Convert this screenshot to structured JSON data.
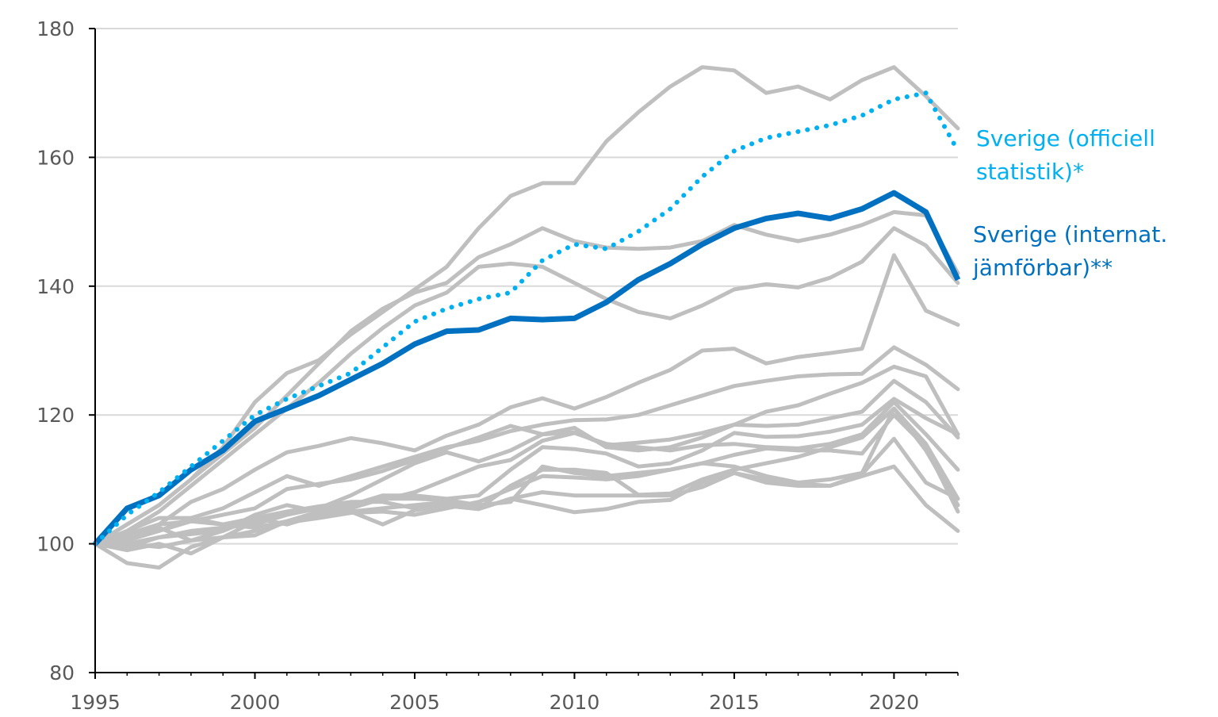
{
  "chart_data": {
    "type": "line",
    "title": "",
    "xlabel": "",
    "ylabel": "",
    "xlim": [
      1995,
      2022
    ],
    "ylim": [
      80,
      180
    ],
    "x_ticks": [
      "1995",
      "2000",
      "2005",
      "2010",
      "2015",
      "2020"
    ],
    "y_ticks": [
      "80",
      "100",
      "120",
      "140",
      "160",
      "180"
    ],
    "grid": "horizontal",
    "colors": {
      "highlight": "#0070C0",
      "official": "#00B0F0",
      "others": "#BFBFBF",
      "grid": "#D9D9D9",
      "axis": "#000000"
    },
    "x": [
      1995,
      1996,
      1997,
      1998,
      1999,
      2000,
      2001,
      2002,
      2003,
      2004,
      2005,
      2006,
      2007,
      2008,
      2009,
      2010,
      2011,
      2012,
      2013,
      2014,
      2015,
      2016,
      2017,
      2018,
      2019,
      2020,
      2021,
      2022
    ],
    "background_series": [
      [
        100,
        103,
        106,
        110,
        115,
        122,
        126.5,
        128.5,
        132.5,
        136,
        139.5,
        143,
        149,
        154,
        156,
        156,
        162.5,
        167,
        171,
        174,
        173.5,
        170,
        171,
        169,
        172,
        174,
        169.5,
        164.5
      ],
      [
        100,
        103,
        106,
        110,
        114,
        118,
        123,
        128,
        133,
        136.5,
        139,
        140.5,
        144.5,
        146.5,
        149,
        147,
        146,
        145.8,
        146,
        147,
        149.5,
        148,
        147,
        148,
        149.5,
        151.5,
        151,
        142
      ],
      [
        100,
        102,
        105,
        109,
        113,
        117,
        121,
        125,
        129.5,
        133.5,
        137,
        139,
        143,
        143.5,
        143,
        140.5,
        138,
        136,
        135,
        137,
        139.5,
        140.3,
        139.8,
        141.3,
        143.8,
        149,
        146.3,
        140.5
      ],
      [
        100,
        101.5,
        103,
        106.5,
        108.5,
        111.5,
        114.2,
        115.2,
        116.4,
        115.6,
        114.5,
        116.8,
        118.5,
        121.2,
        122.6,
        121,
        122.8,
        125,
        127,
        130,
        130.3,
        128,
        129,
        129.6,
        130.3,
        144.8,
        136.2,
        134
      ],
      [
        100,
        101,
        102,
        104,
        105.5,
        108,
        110.5,
        109,
        110.5,
        112,
        113.5,
        115,
        116,
        117.5,
        118.5,
        119.2,
        119.3,
        120,
        121.5,
        123,
        124.5,
        125.3,
        126,
        126.3,
        126.4,
        130.5,
        127.8,
        124
      ],
      [
        100,
        100.5,
        102,
        103.5,
        104.5,
        105.5,
        108.5,
        109.3,
        110,
        111.3,
        113,
        114.8,
        116.5,
        118.3,
        117,
        117.3,
        115.3,
        115.7,
        116.2,
        117.2,
        118.5,
        120.5,
        121.5,
        123.3,
        125,
        127.5,
        126,
        117
      ],
      [
        100,
        102,
        104,
        104,
        103,
        104,
        105,
        105.5,
        107.5,
        110,
        112.5,
        114.2,
        112.8,
        114.5,
        117,
        118,
        115,
        114.5,
        115,
        116.5,
        118.5,
        118.3,
        118.5,
        119.5,
        120.5,
        125.3,
        122,
        116.5
      ],
      [
        100,
        101,
        103,
        103.5,
        103,
        102.5,
        103.5,
        104.5,
        106,
        107.5,
        107.5,
        107,
        107.5,
        111.5,
        115,
        114.7,
        114,
        112,
        112.5,
        114.5,
        117.2,
        116.6,
        116.7,
        117.4,
        118.5,
        122.5,
        119.5,
        117
      ],
      [
        100,
        100,
        101,
        102,
        102.5,
        103,
        104.5,
        105.5,
        106,
        106.8,
        108,
        110,
        112,
        113,
        116,
        117.2,
        115.5,
        115,
        114.5,
        115.3,
        115.5,
        115,
        114.8,
        115.5,
        117,
        122,
        117,
        111.5
      ],
      [
        100,
        99.5,
        101,
        101.5,
        102,
        104.5,
        106,
        105,
        105.5,
        107,
        107,
        106.8,
        106,
        106.5,
        112,
        111,
        110.5,
        111,
        111.5,
        112.5,
        112,
        110.5,
        109.5,
        110,
        111,
        121,
        115.5,
        107
      ],
      [
        100,
        100,
        99.5,
        100.5,
        102,
        104,
        103,
        104.5,
        105,
        105.5,
        106,
        106.5,
        105.5,
        109,
        111.5,
        111.5,
        111,
        107.6,
        107.8,
        110,
        111.5,
        112.5,
        113.5,
        115,
        116.5,
        121,
        114.5,
        106
      ],
      [
        100,
        99,
        100,
        98.5,
        101,
        102,
        103.3,
        104,
        104.8,
        105,
        104.5,
        105.5,
        106.5,
        108.5,
        110.5,
        110.3,
        110,
        110.5,
        111.5,
        112.5,
        113.8,
        114.8,
        114.5,
        114.5,
        114,
        120,
        115,
        105
      ],
      [
        100,
        101.5,
        102.5,
        100.5,
        101,
        103.5,
        105,
        105.8,
        106.5,
        106.5,
        105.5,
        105.9,
        105.4,
        107,
        108,
        107.5,
        107.5,
        107.5,
        107.5,
        108.8,
        111,
        109.5,
        109,
        109,
        110.8,
        116.3,
        109.5,
        107
      ],
      [
        100,
        97,
        96.3,
        99.5,
        101,
        101.3,
        103.5,
        105,
        105,
        103,
        105.2,
        105.9,
        105.4,
        107,
        106,
        104.9,
        105.4,
        106.5,
        106.8,
        109.5,
        111,
        110,
        109.3,
        109,
        110.5,
        112,
        106,
        102
      ]
    ],
    "series": [
      {
        "name": "Sverige (officiell statistik)*",
        "style": "dotted",
        "color": "#00B0F0",
        "values": [
          100,
          104.5,
          108,
          112,
          116,
          120,
          122.5,
          124.5,
          126.5,
          130.5,
          134.5,
          136.5,
          138,
          139,
          144,
          146.5,
          145.8,
          148.5,
          152,
          157,
          161,
          163,
          164,
          165,
          166.5,
          169,
          170,
          161
        ]
      },
      {
        "name": "Sverige (internat. jämförbar)**",
        "style": "solid-thick",
        "color": "#0070C0",
        "values": [
          100,
          105.5,
          107.5,
          111.5,
          114.5,
          119,
          121,
          123,
          125.5,
          128,
          131,
          133,
          133.2,
          135,
          134.8,
          135,
          137.5,
          141,
          143.5,
          146.5,
          149,
          150.5,
          151.3,
          150.5,
          152,
          154.5,
          151.5,
          141
        ]
      }
    ],
    "legend_labels": {
      "official": [
        "Sverige (officiell",
        "statistik)*"
      ],
      "internat": [
        "Sverige (internat.",
        "jämförbar)**"
      ]
    }
  }
}
